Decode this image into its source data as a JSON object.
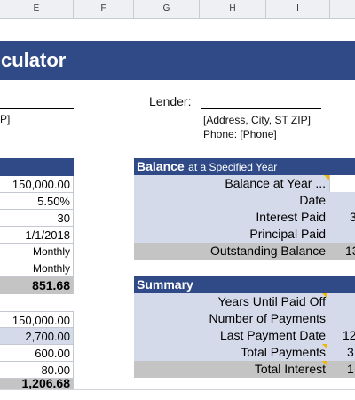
{
  "column_headers": [
    "E",
    "F",
    "G",
    "H",
    "I"
  ],
  "title": "culator",
  "lender": {
    "label": "Lender:",
    "left_address_fragment": "P]",
    "address": "[Address, City, ST ZIP]",
    "phone": "Phone: [Phone]"
  },
  "loan_inputs": [
    "150,000.00",
    "5.50%",
    "30",
    "1/1/2018",
    "Monthly",
    "Monthly"
  ],
  "payment_total": "851.68",
  "cost_inputs": [
    "150,000.00",
    "2,700.00",
    "600.00",
    "80.00"
  ],
  "cost_total": "1,206.68",
  "balance": {
    "header_bold": "Balance",
    "header_rest": "at a Specified Year",
    "rows": [
      {
        "label": "Balance at Year ...",
        "value": ""
      },
      {
        "label": "Date",
        "value": ""
      },
      {
        "label": "Interest Paid",
        "value": "3"
      },
      {
        "label": "Principal Paid",
        "value": ""
      },
      {
        "label": "Outstanding Balance",
        "value": "13"
      }
    ]
  },
  "summary": {
    "header": "Summary",
    "rows": [
      {
        "label": "Years Until Paid Off",
        "value": ""
      },
      {
        "label": "Number of Payments",
        "value": ""
      },
      {
        "label": "Last Payment Date",
        "value": "12"
      },
      {
        "label": "Total Payments",
        "value": "3"
      },
      {
        "label": "Total Interest",
        "value": "1"
      }
    ]
  },
  "colors": {
    "header_blue": "#2f4a86",
    "light_blue": "#d5daea",
    "grey": "#c4c4c4",
    "indicator": "#f2b500"
  }
}
